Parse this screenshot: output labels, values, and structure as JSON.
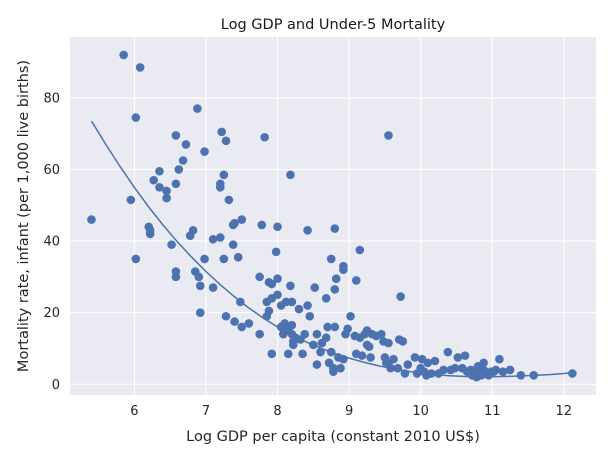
{
  "chart_data": {
    "type": "scatter",
    "title": "Log GDP and Under-5 Mortality",
    "xlabel": "Log GDP per capita (constant 2010 US$)",
    "ylabel": "Mortality rate, infant (per 1,000 live births)",
    "xlim": [
      5.1,
      12.45
    ],
    "ylim": [
      -3,
      97
    ],
    "xticks": [
      6,
      7,
      8,
      9,
      10,
      11,
      12
    ],
    "yticks": [
      0,
      20,
      40,
      60,
      80
    ],
    "grid": true,
    "colors": {
      "background": "#eaeaf2",
      "points": "#4c72b0",
      "fit": "#4c72b0"
    },
    "points": [
      [
        5.85,
        92
      ],
      [
        6.08,
        88.5
      ],
      [
        6.02,
        74.5
      ],
      [
        5.4,
        46
      ],
      [
        5.95,
        51.5
      ],
      [
        6.02,
        35
      ],
      [
        6.2,
        44
      ],
      [
        6.22,
        43
      ],
      [
        6.22,
        42
      ],
      [
        6.27,
        57
      ],
      [
        6.35,
        59.5
      ],
      [
        6.35,
        55
      ],
      [
        6.45,
        52
      ],
      [
        6.45,
        54
      ],
      [
        6.52,
        39
      ],
      [
        6.58,
        69.5
      ],
      [
        6.58,
        56
      ],
      [
        6.62,
        60
      ],
      [
        6.58,
        31.5
      ],
      [
        6.58,
        30
      ],
      [
        6.68,
        62.5
      ],
      [
        6.72,
        67
      ],
      [
        6.78,
        41.5
      ],
      [
        6.82,
        43
      ],
      [
        6.85,
        31.5
      ],
      [
        6.88,
        77
      ],
      [
        6.9,
        30
      ],
      [
        6.92,
        27.5
      ],
      [
        6.92,
        20
      ],
      [
        6.98,
        65
      ],
      [
        6.98,
        35
      ],
      [
        7.1,
        27
      ],
      [
        7.1,
        40.5
      ],
      [
        7.2,
        41
      ],
      [
        7.2,
        56
      ],
      [
        7.2,
        55
      ],
      [
        7.22,
        70.5
      ],
      [
        7.25,
        58.5
      ],
      [
        7.25,
        35
      ],
      [
        7.28,
        68
      ],
      [
        7.28,
        19
      ],
      [
        7.32,
        51.5
      ],
      [
        7.38,
        39
      ],
      [
        7.38,
        44.5
      ],
      [
        7.4,
        45
      ],
      [
        7.4,
        17.5
      ],
      [
        7.45,
        35.5
      ],
      [
        7.48,
        23
      ],
      [
        7.5,
        46
      ],
      [
        7.5,
        16
      ],
      [
        7.6,
        17
      ],
      [
        7.75,
        30
      ],
      [
        7.75,
        14
      ],
      [
        7.78,
        44.5
      ],
      [
        7.82,
        69
      ],
      [
        7.85,
        23
      ],
      [
        7.85,
        19
      ],
      [
        7.88,
        28.5
      ],
      [
        7.88,
        20.5
      ],
      [
        7.92,
        28
      ],
      [
        7.92,
        24
      ],
      [
        7.92,
        8.5
      ],
      [
        7.98,
        37
      ],
      [
        8.0,
        44
      ],
      [
        8.0,
        29.5
      ],
      [
        8.0,
        25
      ],
      [
        8.05,
        22
      ],
      [
        8.05,
        16
      ],
      [
        8.08,
        14
      ],
      [
        8.1,
        17
      ],
      [
        8.12,
        23
      ],
      [
        8.15,
        8.5
      ],
      [
        8.15,
        15
      ],
      [
        8.18,
        58.5
      ],
      [
        8.18,
        27.5
      ],
      [
        8.2,
        23
      ],
      [
        8.2,
        16.5
      ],
      [
        8.2,
        14
      ],
      [
        8.22,
        12
      ],
      [
        8.22,
        11
      ],
      [
        8.25,
        13
      ],
      [
        8.3,
        21
      ],
      [
        8.32,
        12.5
      ],
      [
        8.35,
        8.5
      ],
      [
        8.38,
        14
      ],
      [
        8.42,
        43
      ],
      [
        8.42,
        22
      ],
      [
        8.45,
        19
      ],
      [
        8.5,
        11
      ],
      [
        8.52,
        27
      ],
      [
        8.55,
        14
      ],
      [
        8.55,
        5.5
      ],
      [
        8.6,
        9
      ],
      [
        8.62,
        11.5
      ],
      [
        8.68,
        24
      ],
      [
        8.68,
        13
      ],
      [
        8.7,
        16
      ],
      [
        8.72,
        6
      ],
      [
        8.75,
        35
      ],
      [
        8.75,
        9
      ],
      [
        8.78,
        4.5
      ],
      [
        8.78,
        3.5
      ],
      [
        8.8,
        43.5
      ],
      [
        8.8,
        26.5
      ],
      [
        8.8,
        16
      ],
      [
        8.82,
        29.5
      ],
      [
        8.85,
        7.5
      ],
      [
        8.88,
        4.5
      ],
      [
        8.92,
        33
      ],
      [
        8.92,
        32
      ],
      [
        8.92,
        7
      ],
      [
        8.95,
        14
      ],
      [
        8.98,
        15.5
      ],
      [
        9.02,
        19
      ],
      [
        9.08,
        13.5
      ],
      [
        9.1,
        29
      ],
      [
        9.1,
        8.5
      ],
      [
        9.15,
        37.5
      ],
      [
        9.15,
        13
      ],
      [
        9.18,
        8
      ],
      [
        9.22,
        14
      ],
      [
        9.25,
        11
      ],
      [
        9.25,
        15
      ],
      [
        9.28,
        10.5
      ],
      [
        9.3,
        7.5
      ],
      [
        9.32,
        14
      ],
      [
        9.38,
        13.5
      ],
      [
        9.45,
        14
      ],
      [
        9.48,
        12
      ],
      [
        9.5,
        7.5
      ],
      [
        9.52,
        6
      ],
      [
        9.55,
        69.5
      ],
      [
        9.55,
        11.5
      ],
      [
        9.55,
        5.5
      ],
      [
        9.58,
        4.5
      ],
      [
        9.62,
        7
      ],
      [
        9.68,
        4.5
      ],
      [
        9.7,
        12.5
      ],
      [
        9.72,
        24.5
      ],
      [
        9.75,
        12
      ],
      [
        9.78,
        3
      ],
      [
        9.82,
        5.5
      ],
      [
        9.92,
        7.5
      ],
      [
        9.95,
        3
      ],
      [
        10.0,
        4.5
      ],
      [
        10.02,
        7
      ],
      [
        10.05,
        3.5
      ],
      [
        10.08,
        2.5
      ],
      [
        10.1,
        6
      ],
      [
        10.15,
        3
      ],
      [
        10.2,
        6.5
      ],
      [
        10.25,
        3
      ],
      [
        10.32,
        4
      ],
      [
        10.38,
        9
      ],
      [
        10.42,
        4
      ],
      [
        10.48,
        4.5
      ],
      [
        10.52,
        7.5
      ],
      [
        10.58,
        4.5
      ],
      [
        10.62,
        8
      ],
      [
        10.65,
        3.5
      ],
      [
        10.7,
        4
      ],
      [
        10.72,
        2.5
      ],
      [
        10.75,
        3.5
      ],
      [
        10.78,
        2
      ],
      [
        10.8,
        5
      ],
      [
        10.82,
        3.5
      ],
      [
        10.85,
        2.5
      ],
      [
        10.88,
        6
      ],
      [
        10.88,
        4
      ],
      [
        10.92,
        3
      ],
      [
        10.95,
        2.5
      ],
      [
        10.98,
        3.5
      ],
      [
        11.02,
        3.5
      ],
      [
        11.05,
        4
      ],
      [
        11.1,
        7
      ],
      [
        11.15,
        3.5
      ],
      [
        11.25,
        4
      ],
      [
        11.4,
        2.5
      ],
      [
        11.58,
        2.5
      ],
      [
        12.12,
        3
      ]
    ],
    "fit_line": [
      [
        5.4,
        73.5
      ],
      [
        5.6,
        67
      ],
      [
        5.8,
        60.8
      ],
      [
        6.0,
        55
      ],
      [
        6.2,
        49.5
      ],
      [
        6.4,
        44.5
      ],
      [
        6.6,
        39.8
      ],
      [
        6.8,
        35.5
      ],
      [
        7.0,
        31.5
      ],
      [
        7.2,
        27.8
      ],
      [
        7.4,
        24.4
      ],
      [
        7.6,
        21.3
      ],
      [
        7.8,
        18.5
      ],
      [
        8.0,
        16
      ],
      [
        8.2,
        13.8
      ],
      [
        8.4,
        11.8
      ],
      [
        8.6,
        10.1
      ],
      [
        8.8,
        8.6
      ],
      [
        9.0,
        7.3
      ],
      [
        9.2,
        6.2
      ],
      [
        9.4,
        5.2
      ],
      [
        9.6,
        4.4
      ],
      [
        9.8,
        3.7
      ],
      [
        10.0,
        3.1
      ],
      [
        10.2,
        2.7
      ],
      [
        10.4,
        2.4
      ],
      [
        10.6,
        2.2
      ],
      [
        10.8,
        2.1
      ],
      [
        11.0,
        2.1
      ],
      [
        11.2,
        2.2
      ],
      [
        11.4,
        2.3
      ],
      [
        11.6,
        2.5
      ],
      [
        11.8,
        2.7
      ],
      [
        12.0,
        3.0
      ],
      [
        12.12,
        3.2
      ]
    ]
  }
}
